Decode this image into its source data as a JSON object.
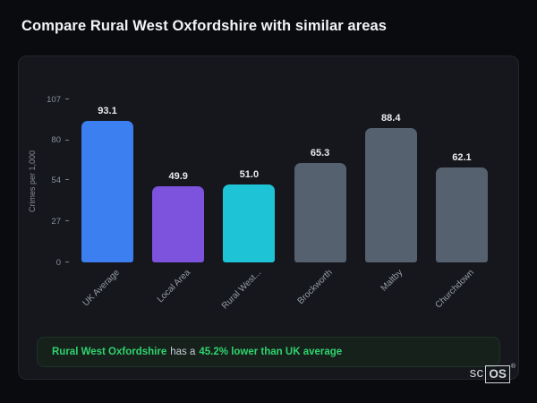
{
  "page_title": "Compare Rural West Oxfordshire with similar areas",
  "chart_data": {
    "type": "bar",
    "title": "Compare Rural West Oxfordshire with similar areas",
    "ylabel": "Crimes per 1,000",
    "xlabel": "",
    "categories": [
      "UK Average",
      "Local Area",
      "Rural West...",
      "Brockworth",
      "Maltby",
      "Churchdown"
    ],
    "values": [
      93.1,
      49.9,
      51.0,
      65.3,
      88.4,
      62.1
    ],
    "value_labels": [
      "93.1",
      "49.9",
      "51.0",
      "65.3",
      "88.4",
      "62.1"
    ],
    "bar_colors": [
      "#3b7ff0",
      "#7d52dd",
      "#1fc3d6",
      "#56616f",
      "#56616f",
      "#56616f"
    ],
    "yticks": [
      0,
      27,
      54,
      80,
      107
    ],
    "ylim": [
      0,
      107
    ],
    "grid": false,
    "legend": false
  },
  "callout": {
    "area_name": "Rural West Oxfordshire",
    "connector_text": "has a",
    "stat_text": "45.2% lower than UK average",
    "accent_color": "#2fd36e"
  },
  "logo": {
    "prefix": "sc",
    "boxed": "OS",
    "registered": "®"
  }
}
